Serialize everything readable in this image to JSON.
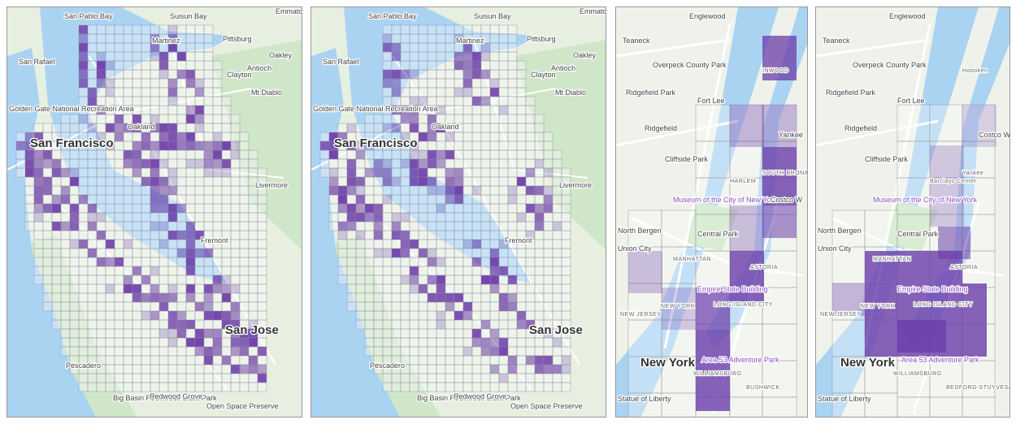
{
  "panels": [
    {
      "labels": [
        "San Pablo Bay",
        "Suisun Bay",
        "Emmaton",
        "Martinez",
        "Pittsburg",
        "Antioch",
        "Oakley",
        "San Rafael",
        "Clayton",
        "Mt Diablo",
        "Golden Gate National Recreation Area",
        "Oakland",
        "San Francisco",
        "Livermore",
        "Fremont",
        "San Jose",
        "Pescadero",
        "Big Basin Redwoods State Park",
        "Redwood Grove",
        "Open Space Preserve"
      ]
    },
    {
      "labels": [
        "San Pablo Bay",
        "Suisun Bay",
        "Emmaton",
        "Martinez",
        "Pittsburg",
        "Antioch",
        "Oakley",
        "San Rafael",
        "Clayton",
        "Mt Diablo",
        "Golden Gate National Recreation Area",
        "Oakland",
        "San Francisco",
        "Livermore",
        "Fremont",
        "San Jose",
        "Pescadero",
        "Big Basin Redwoods State Park",
        "Redwood Grove",
        "Open Space Preserve"
      ]
    },
    {
      "labels": [
        "Englewood",
        "Teaneck",
        "Overpeck County Park",
        "Ridgefield Park",
        "Fort Lee",
        "Ridgefield",
        "Cliffside Park",
        "Museum of the City of New York",
        "Central Park",
        "MANHATTAN",
        "North Bergen",
        "Union City",
        "Empire State Building",
        "LONG ISLAND CITY",
        "ASTORIA",
        "New York",
        "Area 53 Adventure Park",
        "WILLIAMSBURG",
        "Statue of Liberty",
        "BUSHWICK",
        "NEW JERSEY",
        "NEW YORK",
        "INWOOD",
        "HARLEM",
        "SOUTH BRONX",
        "Yankee",
        "Costco W"
      ]
    },
    {
      "labels": [
        "Englewood",
        "Teaneck",
        "Overpeck County Park",
        "Ridgefield Park",
        "Fort Lee",
        "Ridgefield",
        "Cliffside Park",
        "Museum of the City of New York",
        "Central Park",
        "MANHATTAN",
        "North Bergen",
        "Union City",
        "Empire State Building",
        "LONG ISLAND CITY",
        "ASTORIA",
        "New York",
        "Area 53 Adventure Park",
        "WILLIAMSBURG",
        "Statue of Liberty",
        "BEDFORD-STUYVESANT",
        "NEW JERSEY",
        "NEW YORK",
        "Hoboken",
        "Barclays Center",
        "Yankee",
        "Costco W"
      ]
    }
  ]
}
